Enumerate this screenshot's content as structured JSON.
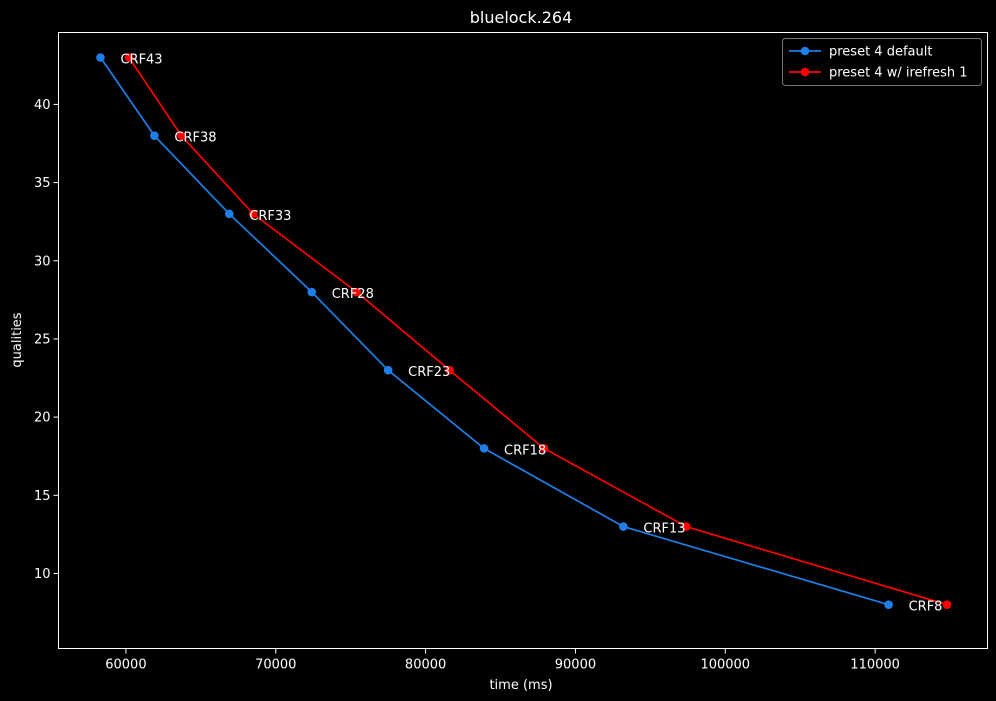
{
  "chart_data": {
    "type": "line",
    "title": "bluelock.264",
    "xlabel": "time (ms)",
    "ylabel": "qualities",
    "xlim": [
      55500,
      117500
    ],
    "ylim": [
      5.2,
      44.6
    ],
    "xticks": [
      60000,
      70000,
      80000,
      90000,
      100000,
      110000
    ],
    "yticks": [
      10,
      15,
      20,
      25,
      30,
      35,
      40
    ],
    "xtick_labels": [
      "60000",
      "70000",
      "80000",
      "90000",
      "100000",
      "110000"
    ],
    "ytick_labels": [
      "10",
      "15",
      "20",
      "25",
      "30",
      "35",
      "40"
    ],
    "grid": false,
    "legend_position": "top-right",
    "series": [
      {
        "name": "preset 4 default",
        "color": "#1f7fe8",
        "x": [
          58300,
          61900,
          66900,
          72400,
          77500,
          83900,
          93200,
          110900
        ],
        "y": [
          43,
          38,
          33,
          28,
          23,
          18,
          13,
          8
        ]
      },
      {
        "name": "preset 4 w/ irefresh 1",
        "color": "#ff0000",
        "x": [
          60200,
          63700,
          68500,
          75400,
          81600,
          87900,
          97400,
          114800
        ],
        "y": [
          43,
          38,
          33,
          28,
          23,
          18,
          13,
          8
        ]
      }
    ],
    "annotations": [
      {
        "text": "CRF43",
        "x": 58300,
        "y": 43
      },
      {
        "text": "CRF38",
        "x": 61900,
        "y": 38
      },
      {
        "text": "CRF33",
        "x": 66900,
        "y": 33
      },
      {
        "text": "CRF28",
        "x": 72400,
        "y": 28
      },
      {
        "text": "CRF23",
        "x": 77500,
        "y": 23
      },
      {
        "text": "CRF18",
        "x": 83900,
        "y": 18
      },
      {
        "text": "CRF13",
        "x": 93200,
        "y": 13
      },
      {
        "text": "CRF8",
        "x": 110900,
        "y": 8
      }
    ]
  }
}
